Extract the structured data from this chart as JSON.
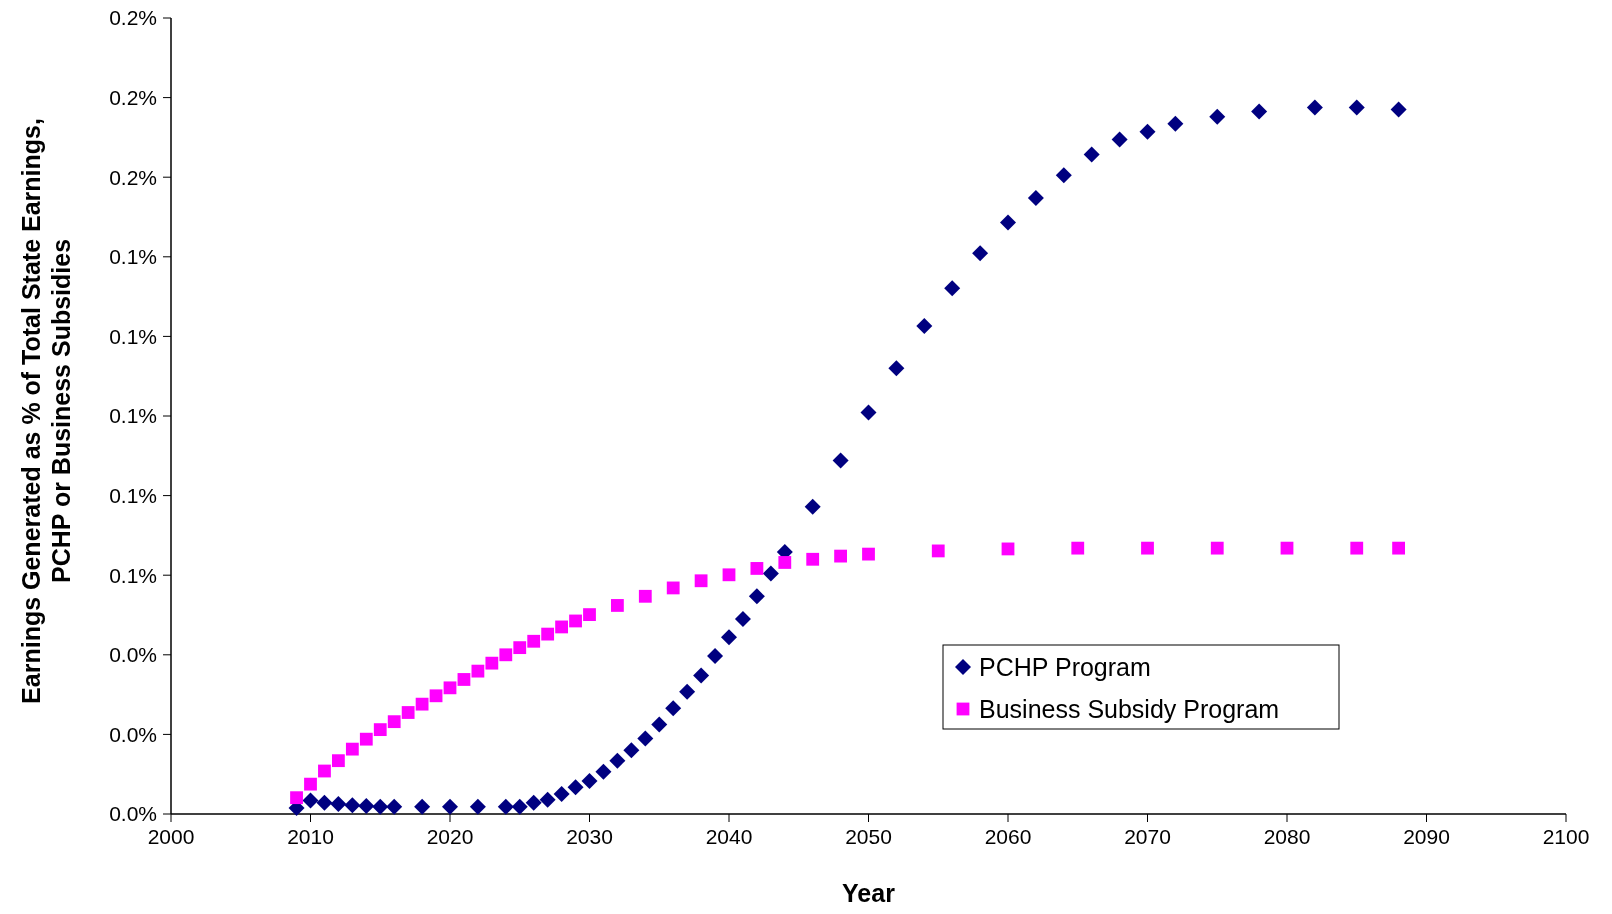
{
  "chart_data": {
    "type": "scatter",
    "xlabel": "Year",
    "ylabel": "Earnings Generated as % of Total State Earnings, PCHP or Business Subsidies",
    "xlim": [
      2000,
      2100
    ],
    "xticks": [
      2000,
      2010,
      2020,
      2030,
      2040,
      2050,
      2060,
      2070,
      2080,
      2090,
      2100
    ],
    "ylim": [
      0,
      0.2
    ],
    "yticks": [
      {
        "value": 0,
        "label": "0.0%"
      },
      {
        "value": 0.02,
        "label": "0.0%"
      },
      {
        "value": 0.04,
        "label": "0.0%"
      },
      {
        "value": 0.06,
        "label": "0.1%"
      },
      {
        "value": 0.08,
        "label": "0.1%"
      },
      {
        "value": 0.1,
        "label": "0.1%"
      },
      {
        "value": 0.12,
        "label": "0.1%"
      },
      {
        "value": 0.14,
        "label": "0.1%"
      },
      {
        "value": 0.16,
        "label": "0.2%"
      },
      {
        "value": 0.18,
        "label": "0.2%"
      },
      {
        "value": 0.2,
        "label": "0.2%"
      }
    ],
    "grid": false,
    "legend": "bottom right",
    "series": [
      {
        "name": "PCHP Program",
        "color": "#000080",
        "marker": "diamond",
        "x": [
          2009,
          2010,
          2011,
          2012,
          2013,
          2014,
          2015,
          2016,
          2018,
          2020,
          2022,
          2024,
          2025,
          2026,
          2027,
          2028,
          2029,
          2030,
          2031,
          2032,
          2033,
          2034,
          2035,
          2036,
          2037,
          2038,
          2039,
          2040,
          2041,
          2042,
          2043,
          2044,
          2046,
          2048,
          2050,
          2052,
          2054,
          2056,
          2058,
          2060,
          2062,
          2064,
          2066,
          2068,
          2070,
          2072,
          2075,
          2078,
          2082,
          2085,
          2088
        ],
        "values": [
          0.0015,
          0.0034,
          0.0028,
          0.0025,
          0.0022,
          0.002,
          0.0018,
          0.0018,
          0.0018,
          0.0018,
          0.0018,
          0.0018,
          0.0018,
          0.0028,
          0.0036,
          0.005,
          0.0067,
          0.0083,
          0.0106,
          0.0134,
          0.016,
          0.019,
          0.0225,
          0.0266,
          0.0307,
          0.0348,
          0.0397,
          0.0444,
          0.049,
          0.0547,
          0.0604,
          0.0658,
          0.0772,
          0.0888,
          0.1009,
          0.112,
          0.1226,
          0.1321,
          0.1409,
          0.1486,
          0.1548,
          0.1605,
          0.1657,
          0.1695,
          0.1714,
          0.1734,
          0.1752,
          0.1765,
          0.1775,
          0.1775,
          0.177
        ]
      },
      {
        "name": "Business Subsidy Program",
        "color": "#ff00ff",
        "marker": "square",
        "x": [
          2009,
          2010,
          2011,
          2012,
          2013,
          2014,
          2015,
          2016,
          2017,
          2018,
          2019,
          2020,
          2021,
          2022,
          2023,
          2024,
          2025,
          2026,
          2027,
          2028,
          2029,
          2030,
          2032,
          2034,
          2036,
          2038,
          2040,
          2042,
          2044,
          2046,
          2048,
          2050,
          2055,
          2060,
          2065,
          2070,
          2075,
          2080,
          2085,
          2088
        ],
        "values": [
          0.0041,
          0.0075,
          0.0108,
          0.0134,
          0.0163,
          0.0188,
          0.0212,
          0.0232,
          0.0255,
          0.0276,
          0.0297,
          0.0317,
          0.0338,
          0.0359,
          0.0379,
          0.04,
          0.0418,
          0.0434,
          0.0452,
          0.047,
          0.0485,
          0.0501,
          0.0524,
          0.0547,
          0.0568,
          0.0586,
          0.0601,
          0.0617,
          0.0632,
          0.064,
          0.0648,
          0.0653,
          0.0661,
          0.0666,
          0.0668,
          0.0668,
          0.0668,
          0.0668,
          0.0668,
          0.0668
        ]
      }
    ]
  }
}
